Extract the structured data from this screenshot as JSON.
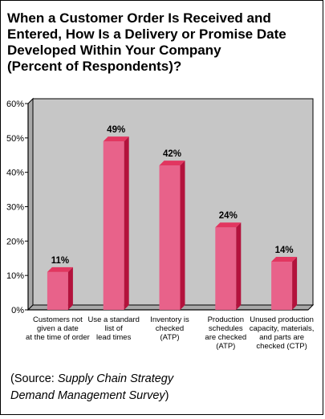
{
  "title": "When a Customer Order Is Received and\nEntered, How Is a Delivery or Promise Date\nDeveloped Within Your Company\n(Percent of Respondents)?",
  "source": {
    "prefix": "(Source: ",
    "italic_line1": "Supply Chain Strategy",
    "italic_line2": "Demand Management Survey",
    "suffix": ")"
  },
  "colors": {
    "bar_front": "#e8628a",
    "bar_side": "#b3123c",
    "bar_top": "#e23660",
    "wall": "#c6c6c6",
    "floor": "#a8a8a8",
    "border": "#000000"
  },
  "chart_data": {
    "type": "bar",
    "title": "When a Customer Order Is Received and Entered, How Is a Delivery or Promise Date Developed Within Your Company (Percent of Respondents)?",
    "categories": [
      [
        "Customers not",
        "given a date",
        "at the time of order"
      ],
      [
        "Use a standard",
        "list of",
        "lead times"
      ],
      [
        "Inventory is",
        "checked",
        "(ATP)"
      ],
      [
        "Production",
        "schedules",
        "are checked",
        "(ATP)"
      ],
      [
        "Unused production",
        "capacity, materials,",
        "and parts are",
        "checked (CTP)"
      ]
    ],
    "values": [
      11,
      49,
      42,
      24,
      14
    ],
    "value_labels": [
      "11%",
      "49%",
      "42%",
      "24%",
      "14%"
    ],
    "yticks": [
      "0%",
      "10%",
      "20%",
      "30%",
      "40%",
      "50%",
      "60%"
    ],
    "ylim": [
      0,
      60
    ],
    "grid": false,
    "legend": "none",
    "style": "3d-bars"
  }
}
